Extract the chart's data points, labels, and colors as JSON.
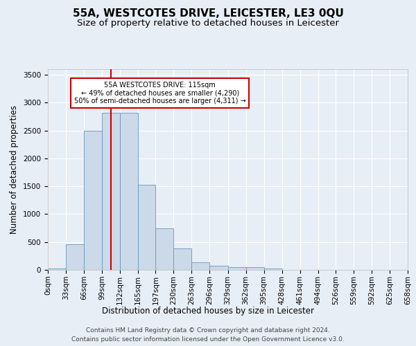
{
  "title": "55A, WESTCOTES DRIVE, LEICESTER, LE3 0QU",
  "subtitle": "Size of property relative to detached houses in Leicester",
  "xlabel": "Distribution of detached houses by size in Leicester",
  "ylabel": "Number of detached properties",
  "bar_color": "#ccd9e8",
  "bar_edge_color": "#6699bb",
  "bar_values": [
    30,
    460,
    2500,
    2820,
    2820,
    1530,
    750,
    390,
    140,
    70,
    55,
    55,
    30,
    0,
    0,
    0,
    0,
    0,
    0,
    0
  ],
  "bin_edges": [
    0,
    33,
    66,
    99,
    132,
    165,
    197,
    230,
    263,
    296,
    329,
    362,
    395,
    428,
    461,
    494,
    526,
    559,
    592,
    625,
    658
  ],
  "tick_labels": [
    "0sqm",
    "33sqm",
    "66sqm",
    "99sqm",
    "132sqm",
    "165sqm",
    "197sqm",
    "230sqm",
    "263sqm",
    "296sqm",
    "329sqm",
    "362sqm",
    "395sqm",
    "428sqm",
    "461sqm",
    "494sqm",
    "526sqm",
    "559sqm",
    "592sqm",
    "625sqm",
    "658sqm"
  ],
  "ylim": [
    0,
    3600
  ],
  "yticks": [
    0,
    500,
    1000,
    1500,
    2000,
    2500,
    3000,
    3500
  ],
  "vline_x": 115,
  "vline_color": "#cc0000",
  "annotation_text": "55A WESTCOTES DRIVE: 115sqm\n← 49% of detached houses are smaller (4,290)\n50% of semi-detached houses are larger (4,311) →",
  "annotation_box_color": "#ffffff",
  "annotation_box_edge_color": "#cc0000",
  "footer_line1": "Contains HM Land Registry data © Crown copyright and database right 2024.",
  "footer_line2": "Contains public sector information licensed under the Open Government Licence v3.0.",
  "background_color": "#e8eef5",
  "plot_bg_color": "#e8eef5",
  "grid_color": "#ffffff",
  "title_fontsize": 11,
  "subtitle_fontsize": 9.5,
  "label_fontsize": 8.5,
  "tick_fontsize": 7.5,
  "footer_fontsize": 6.5
}
